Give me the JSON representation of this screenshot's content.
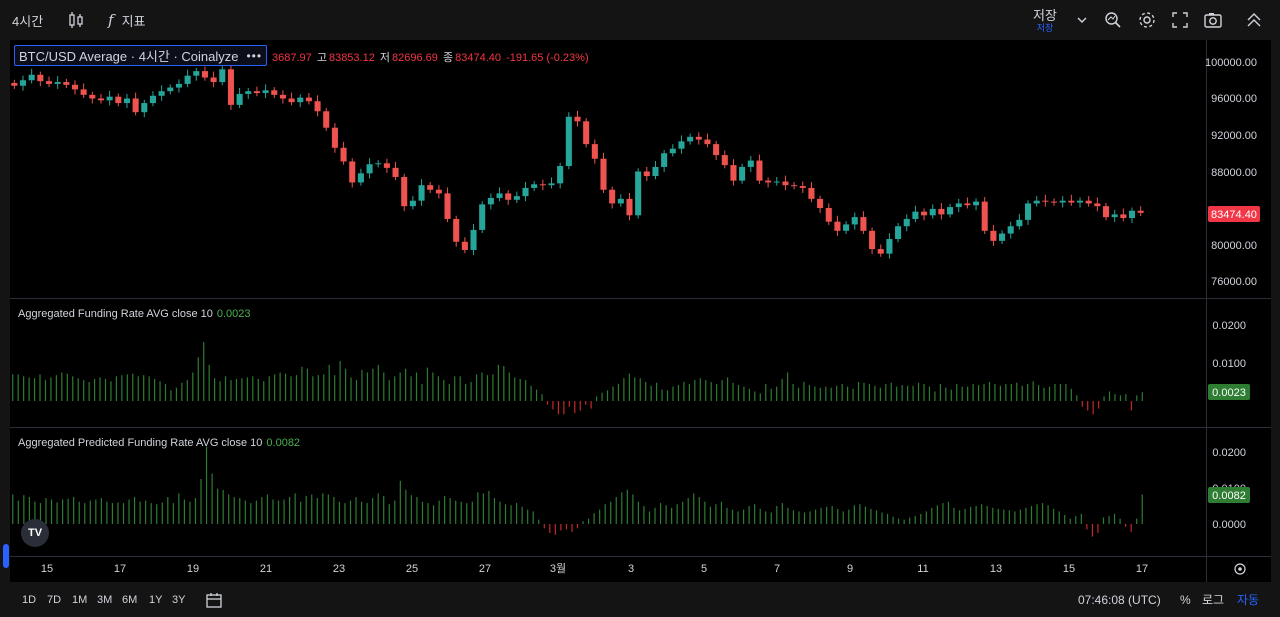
{
  "topbar": {
    "interval": "4시간",
    "indicators_label": "지표",
    "save_label": "저장",
    "save_sub": "저장",
    "icons": [
      "candles-icon",
      "fx-icon",
      "chevron-down-icon",
      "search-zoom-icon",
      "gear-icon",
      "fullscreen-icon",
      "camera-icon",
      "share-icon"
    ]
  },
  "legend": {
    "symbol": "BTC/USD Average · 4시간 · Coinalyze",
    "more": "•••",
    "open_partial": "3687.97",
    "high_label": "고",
    "high": "83853.12",
    "low_label": "저",
    "low": "82696.69",
    "close_label": "종",
    "close": "83474.40",
    "change": "-191.65 (-0.23%)"
  },
  "price_axis": {
    "ticks": [
      "100000.00",
      "96000.00",
      "92000.00",
      "88000.00",
      "80000.00",
      "76000.00"
    ],
    "current": "83474.40",
    "current_color": "#f23645"
  },
  "pane2": {
    "title": "Aggregated Funding Rate AVG close 10",
    "value": "0.0023",
    "ticks": [
      "0.0200",
      "0.0100"
    ],
    "current": "0.0023"
  },
  "pane3": {
    "title": "Aggregated Predicted Funding Rate AVG close 10",
    "value": "0.0082",
    "ticks": [
      "0.0200",
      "0.0100",
      "0.0000"
    ],
    "current": "0.0082"
  },
  "time_axis": {
    "labels": [
      "15",
      "17",
      "19",
      "21",
      "23",
      "25",
      "27",
      "3월",
      "3",
      "5",
      "7",
      "9",
      "11",
      "13",
      "15",
      "17"
    ]
  },
  "bottombar": {
    "ranges": [
      "1D",
      "7D",
      "1M",
      "3M",
      "6M",
      "1Y",
      "3Y"
    ],
    "clock": "07:46:08 (UTC)",
    "percent": "%",
    "log": "로그",
    "auto": "자동"
  },
  "colors": {
    "up": "#26a69a",
    "down": "#ef5350",
    "hist_up": "#2e7d32",
    "hist_down": "#c62828",
    "accent": "#2962ff",
    "green_label": "#4caf50"
  },
  "price_series": [
    97.4,
    98.0,
    98.6,
    97.9,
    97.6,
    97.8,
    97.5,
    97.0,
    96.4,
    96.0,
    95.8,
    96.2,
    95.5,
    96.0,
    94.5,
    95.5,
    96.3,
    96.8,
    97.2,
    97.6,
    98.5,
    99.0,
    98.3,
    97.8,
    99.2,
    95.3,
    96.5,
    96.8,
    96.6,
    96.9,
    96.4,
    96.0,
    95.6,
    96.1,
    95.7,
    94.6,
    92.8,
    90.6,
    89.1,
    86.8,
    87.8,
    88.8,
    88.9,
    88.4,
    87.4,
    84.2,
    84.8,
    86.5,
    86.0,
    85.6,
    82.8,
    80.3,
    79.4,
    81.6,
    84.4,
    85.1,
    85.6,
    84.9,
    85.3,
    86.2,
    86.6,
    86.5,
    86.7,
    88.6,
    94.0,
    93.5,
    91.0,
    89.4,
    86.0,
    84.5,
    85.0,
    83.2,
    88.0,
    87.5,
    88.5,
    90.0,
    90.5,
    91.3,
    91.8,
    91.5,
    91.0,
    89.8,
    88.7,
    87.0,
    88.5,
    89.2,
    87.0,
    86.8,
    86.9,
    86.5,
    86.4,
    86.2,
    85.0,
    84.0,
    82.5,
    81.5,
    82.2,
    83.0,
    81.5,
    79.5,
    79.0,
    80.6,
    82.0,
    82.8,
    83.6,
    83.2,
    83.9,
    83.3,
    84.1,
    84.5,
    84.3,
    84.7,
    81.5,
    80.4,
    81.2,
    82.0,
    82.7,
    84.5,
    84.8,
    84.7,
    84.6,
    84.8,
    84.6,
    84.8,
    84.5,
    84.2,
    83.0,
    83.3,
    82.9,
    83.7,
    83.47
  ],
  "funding_series": [
    0.007,
    0.007,
    0.0065,
    0.0062,
    0.006,
    0.007,
    0.0055,
    0.0062,
    0.0068,
    0.0075,
    0.0072,
    0.0065,
    0.006,
    0.0055,
    0.005,
    0.0058,
    0.0062,
    0.0058,
    0.0052,
    0.0065,
    0.0068,
    0.007,
    0.0072,
    0.0065,
    0.0068,
    0.0065,
    0.0058,
    0.0052,
    0.0045,
    0.0028,
    0.0035,
    0.0048,
    0.0055,
    0.0075,
    0.0115,
    0.0155,
    0.0095,
    0.006,
    0.0052,
    0.0065,
    0.0055,
    0.0058,
    0.006,
    0.0062,
    0.0065,
    0.0058,
    0.0052,
    0.0065,
    0.007,
    0.0075,
    0.0072,
    0.0065,
    0.0068,
    0.009,
    0.0085,
    0.0065,
    0.0068,
    0.007,
    0.0095,
    0.0068,
    0.0105,
    0.0085,
    0.0062,
    0.0055,
    0.0082,
    0.0075,
    0.0085,
    0.0095,
    0.0075,
    0.0055,
    0.0065,
    0.0075,
    0.0085,
    0.0065,
    0.0075,
    0.0045,
    0.0088,
    0.0075,
    0.0065,
    0.0055,
    0.0045,
    0.0065,
    0.0065,
    0.0045,
    0.005,
    0.007,
    0.0075,
    0.0068,
    0.007,
    0.0095,
    0.0092,
    0.0075,
    0.0062,
    0.0058,
    0.0055,
    0.004,
    0.003,
    0.0018,
    -0.001,
    -0.0022,
    -0.0035,
    -0.0035,
    -0.0015,
    -0.0032,
    -0.0025,
    -0.001,
    -0.002,
    0.0012,
    0.0022,
    0.0028,
    0.0038,
    0.0045,
    0.006,
    0.0072,
    0.0062,
    0.006,
    0.005,
    0.004,
    0.0048,
    0.003,
    0.0028,
    0.0038,
    0.0042,
    0.005,
    0.0045,
    0.0055,
    0.006,
    0.0055,
    0.005,
    0.0045,
    0.0055,
    0.0062,
    0.0048,
    0.0042,
    0.0038,
    0.0032,
    0.0025,
    0.002,
    0.0045,
    0.0032,
    0.0038,
    0.0058,
    0.0075,
    0.0045,
    0.0035,
    0.005,
    0.0042,
    0.0038,
    0.0035,
    0.0038,
    0.0035,
    0.004,
    0.0045,
    0.0038,
    0.0032,
    0.005,
    0.0048,
    0.0045,
    0.004,
    0.0035,
    0.0045,
    0.0048,
    0.0038,
    0.0042,
    0.004,
    0.004,
    0.0048,
    0.0045,
    0.0038,
    0.0025,
    0.0045,
    0.0035,
    0.003,
    0.0045,
    0.0038,
    0.0038,
    0.0045,
    0.0042,
    0.0045,
    0.005,
    0.0045,
    0.004,
    0.0045,
    0.0045,
    0.0048,
    0.004,
    0.0045,
    0.0052,
    0.0042,
    0.0035,
    0.0038,
    0.0045,
    0.0045,
    0.0045,
    0.0032,
    0.0015,
    -0.0015,
    -0.0025,
    -0.0035,
    -0.002,
    0.0012,
    0.0025,
    0.0018,
    0.0015,
    0.0018,
    -0.0025,
    0.0015,
    0.0023
  ],
  "predicted_series": [
    0.0082,
    0.0065,
    0.008,
    0.0075,
    0.0062,
    0.0058,
    0.0072,
    0.0068,
    0.006,
    0.0068,
    0.007,
    0.0075,
    0.0062,
    0.0058,
    0.0065,
    0.0068,
    0.0072,
    0.0062,
    0.0058,
    0.006,
    0.0058,
    0.0068,
    0.0075,
    0.0062,
    0.0065,
    0.0058,
    0.0055,
    0.006,
    0.0075,
    0.0058,
    0.0085,
    0.0068,
    0.0062,
    0.0072,
    0.0125,
    0.0215,
    0.014,
    0.0098,
    0.0095,
    0.0082,
    0.0075,
    0.0072,
    0.0065,
    0.0058,
    0.0065,
    0.0075,
    0.0082,
    0.0068,
    0.0065,
    0.0068,
    0.0075,
    0.0085,
    0.0062,
    0.0078,
    0.0082,
    0.0072,
    0.0085,
    0.0082,
    0.0075,
    0.0062,
    0.0058,
    0.0065,
    0.0075,
    0.0062,
    0.0058,
    0.0072,
    0.0085,
    0.0078,
    0.0055,
    0.0065,
    0.012,
    0.0095,
    0.008,
    0.0075,
    0.0062,
    0.0058,
    0.0052,
    0.0065,
    0.0078,
    0.0072,
    0.0065,
    0.0062,
    0.0058,
    0.0062,
    0.0088,
    0.0085,
    0.0092,
    0.0072,
    0.0062,
    0.0055,
    0.0052,
    0.0058,
    0.0048,
    0.004,
    0.0035,
    0.0012,
    -0.0012,
    -0.0025,
    -0.003,
    -0.0018,
    -0.0015,
    -0.0022,
    -0.0012,
    0.0008,
    0.0015,
    0.003,
    0.004,
    0.0055,
    0.0062,
    0.0075,
    0.0088,
    0.0095,
    0.0082,
    0.0062,
    0.005,
    0.0035,
    0.0045,
    0.0058,
    0.0052,
    0.0045,
    0.0055,
    0.0062,
    0.0072,
    0.0085,
    0.0075,
    0.0062,
    0.0048,
    0.0055,
    0.0062,
    0.0045,
    0.004,
    0.0035,
    0.004,
    0.005,
    0.0055,
    0.0042,
    0.0035,
    0.0032,
    0.005,
    0.0058,
    0.0045,
    0.0038,
    0.0035,
    0.0032,
    0.0035,
    0.004,
    0.0045,
    0.0048,
    0.005,
    0.0042,
    0.0035,
    0.004,
    0.0052,
    0.0055,
    0.0048,
    0.0042,
    0.0038,
    0.0032,
    0.0028,
    0.002,
    0.0015,
    0.0012,
    0.0018,
    0.0022,
    0.0028,
    0.0035,
    0.0045,
    0.0052,
    0.0058,
    0.0062,
    0.0045,
    0.0038,
    0.0042,
    0.0048,
    0.005,
    0.0055,
    0.005,
    0.0045,
    0.0042,
    0.004,
    0.0038,
    0.0035,
    0.004,
    0.0045,
    0.005,
    0.0055,
    0.0058,
    0.0052,
    0.0042,
    0.0035,
    0.0025,
    0.0015,
    0.0022,
    0.0028,
    -0.0015,
    -0.0035,
    -0.0025,
    0.0018,
    0.0022,
    0.0028,
    0.0015,
    -0.0008,
    -0.0022,
    0.0015,
    0.0082
  ]
}
